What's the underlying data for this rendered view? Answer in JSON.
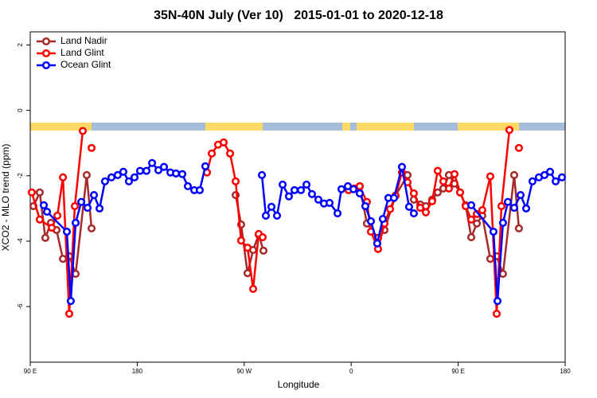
{
  "chart_data": {
    "type": "line",
    "title": "35N-40N July (Ver 10)   2015-01-01 to 2020-12-18",
    "x_label": "Longitude",
    "y_label": "XCO2 - MLO trend (ppm)",
    "xlim": [
      90,
      540
    ],
    "ylim": [
      -7.7,
      2.4
    ],
    "xticks": [
      {
        "value": 90,
        "label": "90 E"
      },
      180,
      {
        "value": 270,
        "label": "90 W"
      },
      {
        "value": 360,
        "label": "0"
      },
      {
        "value": 450,
        "label": "90 E"
      },
      {
        "value": 540,
        "label": "180"
      }
    ],
    "yticks": [
      2,
      0,
      -2,
      -4,
      -6
    ],
    "legend": "top-left",
    "series": [
      {
        "name": "Land Nadir",
        "color": "#a52a2a",
        "x": [
          92.7,
          98.0,
          102.7,
          107.4,
          112.1,
          117.5,
          122.8,
          128.2,
          137.5,
          141.6,
          null,
          262.8,
          267.4,
          272.8,
          277.5,
          282.2,
          286.2,
          null,
          367.2,
          373.2,
          382.6,
          388.0,
          397.3,
          407.4,
          412.7,
          418.1,
          422.8,
          428.1,
          432.8,
          437.5,
          442.2,
          446.9,
          451.6,
          456.3,
          461.0,
          465.7,
          470.3,
          477.0,
          482.4,
          487.7,
          497.1,
          501.1
        ],
        "values": [
          -2.93,
          -2.51,
          -3.9,
          -3.44,
          -3.66,
          -4.54,
          -4.46,
          -5.0,
          -1.98,
          -3.61,
          null,
          -2.59,
          -3.49,
          -4.98,
          -4.27,
          -3.8,
          -4.29,
          null,
          -2.32,
          -3.46,
          -3.9,
          -3.66,
          -2.61,
          -1.98,
          -2.73,
          -2.88,
          -2.93,
          -2.73,
          -2.51,
          -2.39,
          -1.98,
          -2.24,
          -2.51,
          -2.9,
          -3.88,
          -3.46,
          -3.22,
          -4.54,
          -4.46,
          -5.0,
          -1.98,
          -3.61
        ]
      },
      {
        "name": "Land Glint",
        "color": "#ff0000",
        "x": [
          91.3,
          98.0,
          108.1,
          112.8,
          117.5,
          122.8,
          127.5,
          134.2,
          null,
          141.6,
          null,
          238.7,
          242.7,
          248.0,
          252.7,
          258.1,
          262.8,
          267.4,
          272.8,
          277.5,
          282.2,
          285.5,
          null,
          357.8,
          362.5,
          367.2,
          373.2,
          376.6,
          382.6,
          388.0,
          392.7,
          397.3,
          402.7,
          407.4,
          412.7,
          418.1,
          422.8,
          428.1,
          432.8,
          437.5,
          442.2,
          446.9,
          451.6,
          456.3,
          461.0,
          465.7,
          470.3,
          477.0,
          482.4,
          486.4,
          493.1,
          null,
          501.1
        ],
        "values": [
          -2.51,
          -3.34,
          -3.59,
          -3.22,
          -2.05,
          -6.22,
          -2.93,
          -0.63,
          null,
          -1.15,
          null,
          -1.9,
          -1.32,
          -1.05,
          -0.98,
          -1.32,
          -2.17,
          -3.98,
          -4.2,
          -5.46,
          -3.78,
          -3.88,
          null,
          -2.44,
          -2.39,
          -2.32,
          -2.8,
          -3.71,
          -4.24,
          -3.46,
          -3.02,
          -2.61,
          -1.9,
          -2.2,
          -2.54,
          -2.98,
          -3.12,
          -2.78,
          -1.85,
          -2.17,
          -2.39,
          -1.95,
          -2.51,
          -2.93,
          -3.34,
          -3.17,
          -3.05,
          -2.02,
          -6.22,
          -2.93,
          -0.6,
          null,
          -1.15
        ]
      },
      {
        "name": "Ocean Glint",
        "color": "#0000ff",
        "x": [
          101.4,
          104.1,
          120.8,
          124.1,
          128.2,
          132.9,
          138.2,
          143.6,
          148.3,
          152.9,
          158.3,
          163.6,
          168.3,
          173.0,
          177.7,
          182.4,
          187.8,
          192.5,
          197.8,
          202.5,
          207.9,
          212.6,
          217.9,
          222.6,
          228.0,
          232.6,
          237.3,
          null,
          284.9,
          288.2,
          292.9,
          297.6,
          302.3,
          307.6,
          312.3,
          317.7,
          322.4,
          327.0,
          332.4,
          337.1,
          341.8,
          348.5,
          351.8,
          357.2,
          361.9,
          367.2,
          371.9,
          376.6,
          381.9,
          386.6,
          391.3,
          396.0,
          402.7,
          408.7,
          412.7,
          null,
          461.0,
          479.7,
          483.1,
          487.7,
          491.8,
          497.1,
          502.5,
          507.2,
          512.5,
          517.9,
          522.6,
          527.3,
          532.0,
          537.3
        ],
        "values": [
          -2.9,
          -3.1,
          -3.71,
          -5.83,
          -3.44,
          -2.8,
          -2.98,
          -2.59,
          -3.0,
          -2.17,
          -2.05,
          -1.98,
          -1.88,
          -2.17,
          -2.05,
          -1.85,
          -1.85,
          -1.61,
          -1.83,
          -1.73,
          -1.9,
          -1.93,
          -1.95,
          -2.32,
          -2.44,
          -2.44,
          -1.71,
          null,
          -1.98,
          -3.22,
          -2.95,
          -3.22,
          -2.27,
          -2.63,
          -2.44,
          -2.44,
          -2.27,
          -2.56,
          -2.73,
          -2.85,
          -2.83,
          -3.15,
          -2.41,
          -2.32,
          -2.41,
          -2.54,
          -2.93,
          -3.39,
          -4.07,
          -3.32,
          -2.68,
          -2.68,
          -1.73,
          -2.95,
          -3.15,
          null,
          -2.9,
          -3.71,
          -5.83,
          -3.44,
          -2.8,
          -2.98,
          -2.59,
          -3.0,
          -2.17,
          -2.05,
          -1.98,
          -1.88,
          -2.17,
          -2.05
        ]
      }
    ]
  }
}
